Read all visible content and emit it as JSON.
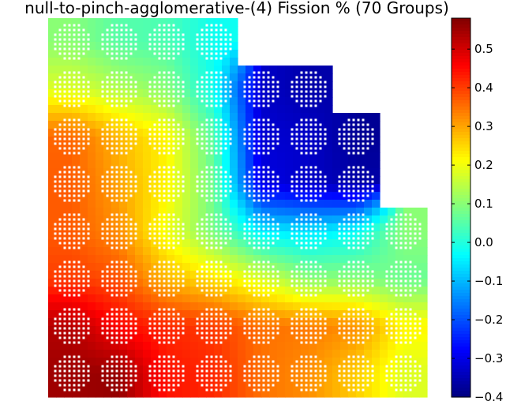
{
  "chart_data": {
    "type": "heatmap",
    "title": "null-to-pinch-agglomerative-(4) Fission % (70 Groups)",
    "grid_size": 8,
    "colormap": "jet",
    "vmin": -0.4,
    "vmax": 0.58,
    "colorbar": {
      "ticks": [
        0.5,
        0.4,
        0.3,
        0.2,
        0.1,
        0.0,
        -0.1,
        -0.2,
        -0.3,
        -0.4
      ],
      "tick_labels": [
        "0.5",
        "0.4",
        "0.3",
        "0.2",
        "0.1",
        "0.0",
        "−0.1",
        "−0.2",
        "−0.3",
        "−0.4"
      ]
    },
    "rows": [
      [
        0.1,
        0.05,
        0.04,
        -0.02,
        null,
        null,
        null,
        null
      ],
      [
        0.18,
        0.14,
        0.1,
        -0.02,
        -0.33,
        -0.36,
        null,
        null
      ],
      [
        0.36,
        0.28,
        0.22,
        0.05,
        -0.32,
        -0.33,
        -0.38,
        null
      ],
      [
        0.37,
        0.3,
        0.22,
        0.07,
        -0.3,
        -0.33,
        -0.36,
        null
      ],
      [
        0.37,
        0.32,
        0.2,
        0.08,
        -0.05,
        -0.06,
        -0.03,
        0.1
      ],
      [
        0.4,
        0.38,
        0.28,
        0.24,
        0.18,
        0.1,
        0.1,
        0.07
      ],
      [
        0.53,
        0.45,
        0.42,
        0.4,
        0.35,
        0.34,
        0.32,
        0.22
      ],
      [
        0.55,
        0.56,
        0.44,
        0.42,
        0.35,
        0.32,
        0.26,
        0.18
      ]
    ]
  }
}
